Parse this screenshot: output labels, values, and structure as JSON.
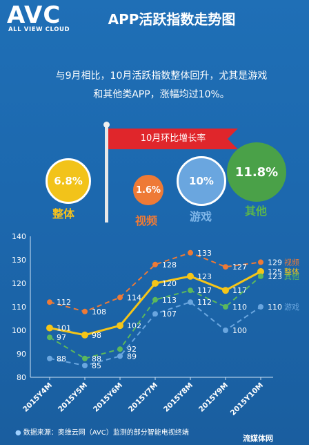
{
  "logo": {
    "word": "AVC",
    "sub": "ALL VIEW CLOUD"
  },
  "title": "APP活跃指数走势图",
  "summary": {
    "line1": "与9月相比，10月活跃指数整体回升，尤其是游戏",
    "line2": "和其他类APP，涨幅均过10%。"
  },
  "flag": "10月环比增长率",
  "growth": [
    {
      "value": "6.8%",
      "label": "整体",
      "color": "#f2c31a"
    },
    {
      "value": "1.6%",
      "label": "视频",
      "color": "#ee7a36"
    },
    {
      "value": "10%",
      "label": "游戏",
      "color": "#6aa6df"
    },
    {
      "value": "11.8%",
      "label": "其他",
      "color": "#4aa148"
    }
  ],
  "footer": "数据来源：奥维云网（AVC）监测的部分智能电视终端",
  "watermark": "流媒体网",
  "chart_data": {
    "type": "line",
    "categories": [
      "2015Y4M",
      "2015Y5M",
      "2015Y6M",
      "2015Y7M",
      "2015Y8M",
      "2015Y9M",
      "2015Y10M"
    ],
    "ylim": [
      80,
      140
    ],
    "yticks": [
      80,
      90,
      100,
      110,
      120,
      130,
      140
    ],
    "series": [
      {
        "name": "视频",
        "color": "#ee7a36",
        "style": "dashed",
        "values": [
          112,
          108,
          114,
          128,
          133,
          127,
          129
        ]
      },
      {
        "name": "整体",
        "color": "#f5c518",
        "style": "solid",
        "values": [
          101,
          98,
          102,
          120,
          123,
          117,
          125
        ]
      },
      {
        "name": "其他",
        "color": "#5cb85c",
        "style": "dashed",
        "values": [
          97,
          88,
          92,
          113,
          117,
          110,
          123
        ]
      },
      {
        "name": "游戏",
        "color": "#6aa6df",
        "style": "dashed",
        "values": [
          88,
          85,
          89,
          107,
          112,
          100,
          110
        ]
      }
    ]
  }
}
